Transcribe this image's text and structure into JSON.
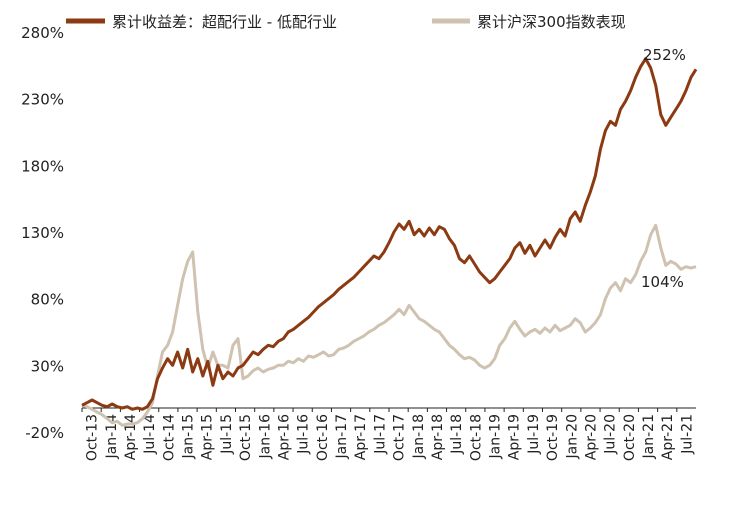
{
  "chart_data": {
    "type": "line",
    "legend_position": "top",
    "grid": false,
    "ylim": [
      -20,
      280
    ],
    "yticks": [
      "-20%",
      "30%",
      "80%",
      "130%",
      "180%",
      "230%",
      "280%"
    ],
    "ytick_values": [
      -20,
      30,
      80,
      130,
      180,
      230,
      280
    ],
    "x_tick_labels": [
      "Oct-13",
      "Jan-14",
      "Apr-14",
      "Jul-14",
      "Oct-14",
      "Jan-15",
      "Apr-15",
      "Jul-15",
      "Oct-15",
      "Jan-16",
      "Apr-16",
      "Jul-16",
      "Oct-16",
      "Jan-17",
      "Apr-17",
      "Jul-17",
      "Oct-17",
      "Jan-18",
      "Apr-18",
      "Jul-18",
      "Oct-18",
      "Jan-19",
      "Apr-19",
      "Jul-19",
      "Oct-19",
      "Jan-20",
      "Apr-20",
      "Jul-20",
      "Oct-20",
      "Jan-21",
      "Apr-21",
      "Jul-21"
    ],
    "series": [
      {
        "name": "累计收益差：超配行业 - 低配行业",
        "color": "#8B3A12",
        "end_label": "252%",
        "points": [
          [
            0,
            0
          ],
          [
            1,
            2
          ],
          [
            2,
            4
          ],
          [
            3,
            2
          ],
          [
            4,
            0
          ],
          [
            5,
            -1
          ],
          [
            6,
            1
          ],
          [
            7,
            -1
          ],
          [
            8,
            -2
          ],
          [
            9,
            -1
          ],
          [
            10,
            -3
          ],
          [
            11,
            -2
          ],
          [
            12,
            -3
          ],
          [
            13,
            -1
          ],
          [
            14,
            5
          ],
          [
            15,
            20
          ],
          [
            16,
            28
          ],
          [
            17,
            35
          ],
          [
            18,
            30
          ],
          [
            19,
            40
          ],
          [
            20,
            28
          ],
          [
            21,
            42
          ],
          [
            22,
            25
          ],
          [
            23,
            35
          ],
          [
            24,
            22
          ],
          [
            25,
            33
          ],
          [
            26,
            15
          ],
          [
            27,
            30
          ],
          [
            28,
            20
          ],
          [
            29,
            25
          ],
          [
            30,
            22
          ],
          [
            31,
            28
          ],
          [
            32,
            30
          ],
          [
            33,
            35
          ],
          [
            34,
            40
          ],
          [
            35,
            38
          ],
          [
            36,
            42
          ],
          [
            37,
            45
          ],
          [
            38,
            44
          ],
          [
            39,
            48
          ],
          [
            40,
            50
          ],
          [
            41,
            55
          ],
          [
            42,
            57
          ],
          [
            43,
            60
          ],
          [
            44,
            63
          ],
          [
            45,
            66
          ],
          [
            46,
            70
          ],
          [
            47,
            74
          ],
          [
            48,
            77
          ],
          [
            49,
            80
          ],
          [
            50,
            83
          ],
          [
            51,
            87
          ],
          [
            52,
            90
          ],
          [
            53,
            93
          ],
          [
            54,
            96
          ],
          [
            55,
            100
          ],
          [
            56,
            104
          ],
          [
            57,
            108
          ],
          [
            58,
            112
          ],
          [
            59,
            110
          ],
          [
            60,
            115
          ],
          [
            61,
            122
          ],
          [
            62,
            130
          ],
          [
            63,
            136
          ],
          [
            64,
            132
          ],
          [
            65,
            138
          ],
          [
            66,
            128
          ],
          [
            67,
            132
          ],
          [
            68,
            127
          ],
          [
            69,
            133
          ],
          [
            70,
            128
          ],
          [
            71,
            134
          ],
          [
            72,
            132
          ],
          [
            73,
            125
          ],
          [
            74,
            120
          ],
          [
            75,
            110
          ],
          [
            76,
            107
          ],
          [
            77,
            112
          ],
          [
            78,
            106
          ],
          [
            79,
            100
          ],
          [
            80,
            96
          ],
          [
            81,
            92
          ],
          [
            82,
            95
          ],
          [
            83,
            100
          ],
          [
            84,
            105
          ],
          [
            85,
            110
          ],
          [
            86,
            118
          ],
          [
            87,
            122
          ],
          [
            88,
            114
          ],
          [
            89,
            120
          ],
          [
            90,
            112
          ],
          [
            91,
            118
          ],
          [
            92,
            124
          ],
          [
            93,
            118
          ],
          [
            94,
            126
          ],
          [
            95,
            132
          ],
          [
            96,
            127
          ],
          [
            97,
            140
          ],
          [
            98,
            145
          ],
          [
            99,
            138
          ],
          [
            100,
            150
          ],
          [
            101,
            160
          ],
          [
            102,
            172
          ],
          [
            103,
            192
          ],
          [
            104,
            206
          ],
          [
            105,
            213
          ],
          [
            106,
            210
          ],
          [
            107,
            222
          ],
          [
            108,
            228
          ],
          [
            109,
            236
          ],
          [
            110,
            246
          ],
          [
            111,
            254
          ],
          [
            112,
            260
          ],
          [
            113,
            253
          ],
          [
            114,
            240
          ],
          [
            115,
            218
          ],
          [
            116,
            210
          ],
          [
            117,
            216
          ],
          [
            118,
            222
          ],
          [
            119,
            228
          ],
          [
            120,
            236
          ],
          [
            121,
            246
          ],
          [
            122,
            252
          ]
        ]
      },
      {
        "name": "累计沪深300指数表现",
        "color": "#CFC2B0",
        "end_label": "104%",
        "points": [
          [
            0,
            0
          ],
          [
            1,
            -1
          ],
          [
            2,
            -3
          ],
          [
            3,
            -5
          ],
          [
            4,
            -7
          ],
          [
            5,
            -10
          ],
          [
            6,
            -13
          ],
          [
            7,
            -12
          ],
          [
            8,
            -15
          ],
          [
            9,
            -14
          ],
          [
            10,
            -14
          ],
          [
            11,
            -13
          ],
          [
            12,
            -10
          ],
          [
            13,
            -5
          ],
          [
            14,
            2
          ],
          [
            15,
            22
          ],
          [
            16,
            40
          ],
          [
            17,
            45
          ],
          [
            18,
            55
          ],
          [
            19,
            75
          ],
          [
            20,
            95
          ],
          [
            21,
            108
          ],
          [
            22,
            115
          ],
          [
            23,
            70
          ],
          [
            24,
            42
          ],
          [
            25,
            28
          ],
          [
            26,
            40
          ],
          [
            27,
            30
          ],
          [
            28,
            30
          ],
          [
            29,
            28
          ],
          [
            30,
            45
          ],
          [
            31,
            50
          ],
          [
            32,
            20
          ],
          [
            33,
            22
          ],
          [
            34,
            26
          ],
          [
            35,
            28
          ],
          [
            36,
            25
          ],
          [
            37,
            27
          ],
          [
            38,
            28
          ],
          [
            39,
            30
          ],
          [
            40,
            30
          ],
          [
            41,
            33
          ],
          [
            42,
            32
          ],
          [
            43,
            35
          ],
          [
            44,
            33
          ],
          [
            45,
            37
          ],
          [
            46,
            36
          ],
          [
            47,
            38
          ],
          [
            48,
            40
          ],
          [
            49,
            37
          ],
          [
            50,
            38
          ],
          [
            51,
            42
          ],
          [
            52,
            43
          ],
          [
            53,
            45
          ],
          [
            54,
            48
          ],
          [
            55,
            50
          ],
          [
            56,
            52
          ],
          [
            57,
            55
          ],
          [
            58,
            57
          ],
          [
            59,
            60
          ],
          [
            60,
            62
          ],
          [
            61,
            65
          ],
          [
            62,
            68
          ],
          [
            63,
            72
          ],
          [
            64,
            68
          ],
          [
            65,
            75
          ],
          [
            66,
            70
          ],
          [
            67,
            65
          ],
          [
            68,
            63
          ],
          [
            69,
            60
          ],
          [
            70,
            57
          ],
          [
            71,
            55
          ],
          [
            72,
            50
          ],
          [
            73,
            45
          ],
          [
            74,
            42
          ],
          [
            75,
            38
          ],
          [
            76,
            35
          ],
          [
            77,
            36
          ],
          [
            78,
            34
          ],
          [
            79,
            30
          ],
          [
            80,
            28
          ],
          [
            81,
            30
          ],
          [
            82,
            35
          ],
          [
            83,
            45
          ],
          [
            84,
            50
          ],
          [
            85,
            58
          ],
          [
            86,
            63
          ],
          [
            87,
            57
          ],
          [
            88,
            52
          ],
          [
            89,
            55
          ],
          [
            90,
            57
          ],
          [
            91,
            54
          ],
          [
            92,
            58
          ],
          [
            93,
            55
          ],
          [
            94,
            60
          ],
          [
            95,
            56
          ],
          [
            96,
            58
          ],
          [
            97,
            60
          ],
          [
            98,
            65
          ],
          [
            99,
            62
          ],
          [
            100,
            55
          ],
          [
            101,
            58
          ],
          [
            102,
            62
          ],
          [
            103,
            68
          ],
          [
            104,
            80
          ],
          [
            105,
            88
          ],
          [
            106,
            92
          ],
          [
            107,
            86
          ],
          [
            108,
            95
          ],
          [
            109,
            92
          ],
          [
            110,
            98
          ],
          [
            111,
            108
          ],
          [
            112,
            115
          ],
          [
            113,
            128
          ],
          [
            114,
            135
          ],
          [
            115,
            118
          ],
          [
            116,
            105
          ],
          [
            117,
            108
          ],
          [
            118,
            106
          ],
          [
            119,
            102
          ],
          [
            120,
            104
          ],
          [
            121,
            103
          ],
          [
            122,
            104
          ]
        ]
      }
    ]
  }
}
